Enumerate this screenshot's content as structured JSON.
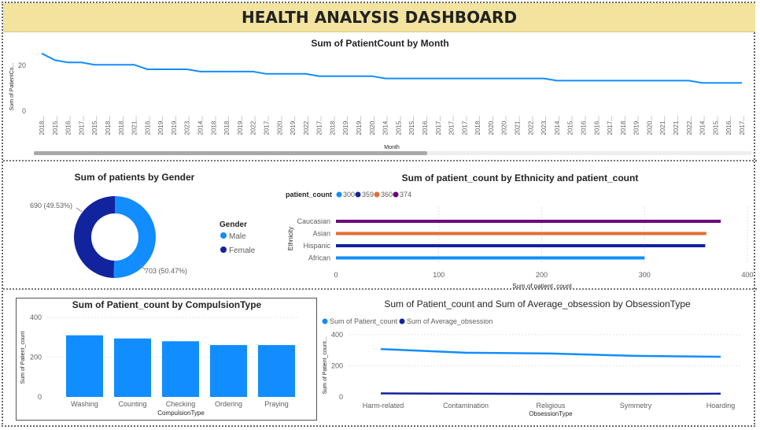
{
  "header": {
    "title": "HEALTH ANALYSIS DASHBOARD"
  },
  "colors": {
    "blue": "#118dff",
    "navy": "#12239e",
    "orange": "#e66c37",
    "purple": "#6b007b",
    "title_bg": "#f2e39e"
  },
  "chart_data": [
    {
      "id": "month",
      "type": "line",
      "title": "Sum of PatientCount by Month",
      "xlabel": "Month",
      "ylabel": "Sum of PatientCo...",
      "y_ticks": [
        0,
        20
      ],
      "ylim": [
        0,
        27
      ],
      "x_tick_labels": [
        "2018...",
        "2015...",
        "2016...",
        "2017...",
        "2015...",
        "2018...",
        "2018...",
        "2021...",
        "2016...",
        "2019...",
        "2019...",
        "2023...",
        "2014...",
        "2018...",
        "2018...",
        "2019...",
        "2022...",
        "2017...",
        "2020...",
        "2019...",
        "2022...",
        "2017...",
        "2018...",
        "2019...",
        "2019...",
        "2020...",
        "2014...",
        "2015...",
        "2015...",
        "2016...",
        "2017...",
        "2017...",
        "2017...",
        "2018...",
        "2020...",
        "2020...",
        "2021...",
        "2022...",
        "2023...",
        "2014...",
        "2015...",
        "2016...",
        "2016...",
        "2017...",
        "2018...",
        "2019...",
        "2020...",
        "2021...",
        "2021...",
        "2022...",
        "2014...",
        "2015...",
        "2016...",
        "2017..."
      ],
      "values": [
        25,
        22,
        21,
        21,
        20,
        20,
        20,
        20,
        18,
        18,
        18,
        18,
        17,
        17,
        17,
        17,
        17,
        16,
        16,
        16,
        16,
        15,
        15,
        15,
        15,
        15,
        14,
        14,
        14,
        14,
        14,
        14,
        14,
        14,
        14,
        14,
        14,
        14,
        14,
        13,
        13,
        13,
        13,
        13,
        13,
        13,
        13,
        13,
        13,
        13,
        12,
        12,
        12,
        12
      ]
    },
    {
      "id": "gender",
      "type": "pie",
      "title": "Sum of patients by Gender",
      "legend_title": "Gender",
      "categories": [
        "Male",
        "Female"
      ],
      "values": [
        703,
        690
      ],
      "labels": [
        "703 (50.47%)",
        "690 (49.53%)"
      ]
    },
    {
      "id": "ethnicity",
      "type": "bar",
      "orientation": "horizontal",
      "title": "Sum of patient_count by Ethnicity and patient_count",
      "legend_title": "patient_count",
      "legend": [
        "300",
        "359",
        "360",
        "374"
      ],
      "categories": [
        "Caucasian",
        "Asian",
        "Hispanic",
        "African"
      ],
      "values": [
        374,
        360,
        359,
        300
      ],
      "xlabel": "Sum of patient_count",
      "ylabel": "Ethnicity",
      "x_ticks": [
        0,
        100,
        200,
        300,
        400
      ],
      "xlim": [
        0,
        400
      ]
    },
    {
      "id": "compulsion",
      "type": "bar",
      "title": "Sum of Patient_count by CompulsionType",
      "categories": [
        "Washing",
        "Counting",
        "Checking",
        "Ordering",
        "Praying"
      ],
      "values": [
        310,
        294,
        280,
        261,
        261
      ],
      "xlabel": "CompulsionType",
      "ylabel": "Sum of Patient_count",
      "y_ticks": [
        0,
        200,
        400
      ],
      "ylim": [
        0,
        400
      ]
    },
    {
      "id": "obsession",
      "type": "line",
      "title": "Sum of Patient_count and Sum of Average_obsession by ObsessionType",
      "categories": [
        "Harm-related",
        "Contamination",
        "Religious",
        "Symmetry",
        "Hoarding"
      ],
      "series": [
        {
          "name": "Sum of Patient_count",
          "values": [
            308,
            284,
            279,
            264,
            258
          ]
        },
        {
          "name": "Sum of Average_obsession",
          "values": [
            23,
            21,
            20,
            20,
            21
          ]
        }
      ],
      "xlabel": "ObsessionType",
      "ylabel": "Sum of Patient_count...",
      "y_ticks": [
        0,
        200,
        400
      ],
      "ylim": [
        0,
        400
      ]
    }
  ]
}
